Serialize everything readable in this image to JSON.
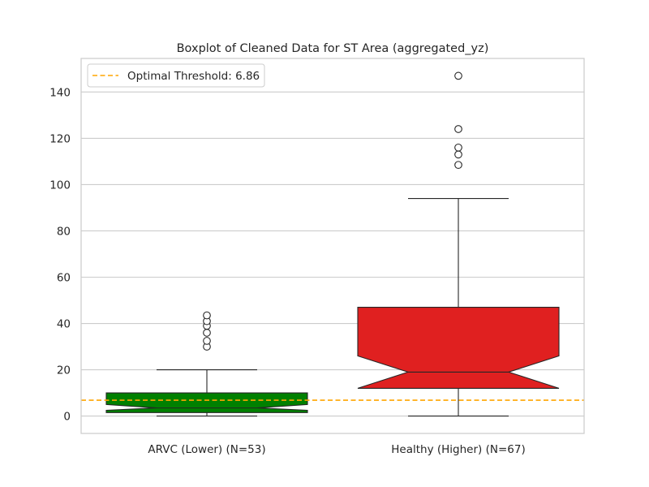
{
  "chart_data": {
    "type": "box",
    "title": "Boxplot of Cleaned Data for ST Area (aggregated_yz)",
    "xlabel": "",
    "ylabel": "",
    "ylim": [
      -7.5,
      154.5
    ],
    "yticks": [
      0,
      20,
      40,
      60,
      80,
      100,
      120,
      140
    ],
    "grid": "y",
    "notched": true,
    "categories": [
      "ARVC (Lower) (N=53)",
      "Healthy (Higher) (N=67)"
    ],
    "boxes": [
      {
        "category": "ARVC (Lower) (N=53)",
        "color": "#008000",
        "whisker_low": 0,
        "q1": 1.5,
        "notch_low": 2.5,
        "median": 3.5,
        "notch_high": 5,
        "q3": 10,
        "whisker_high": 20,
        "outliers": [
          30,
          32.5,
          36,
          39,
          41,
          43.5
        ]
      },
      {
        "category": "Healthy (Higher) (N=67)",
        "color": "#e02020",
        "whisker_low": 0,
        "q1": 12,
        "notch_low": 12,
        "median": 19,
        "notch_high": 26,
        "q3": 47,
        "whisker_high": 94,
        "outliers": [
          108.5,
          113,
          116,
          124,
          147
        ]
      }
    ],
    "threshold": {
      "value": 6.86,
      "label": "Optimal Threshold: 6.86",
      "color": "#ffa500",
      "style": "dashed"
    },
    "legend": "top-left"
  }
}
